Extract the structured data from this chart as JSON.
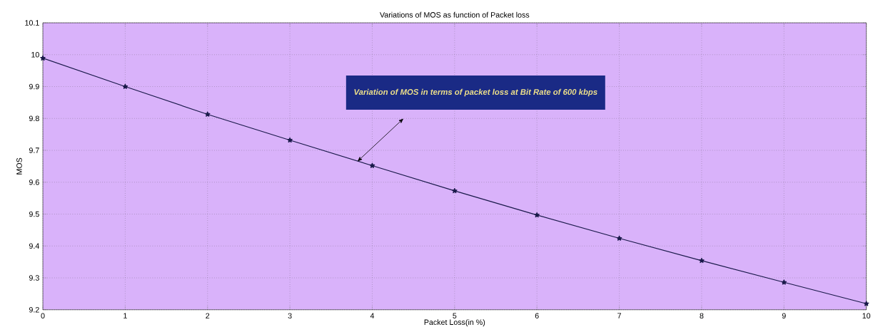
{
  "chart_data": {
    "type": "line",
    "title": "Variations of MOS as function of Packet loss",
    "xlabel": "Packet Loss(in %)",
    "ylabel": "MOS",
    "x": [
      0,
      1,
      2,
      3,
      4,
      5,
      6,
      7,
      8,
      9,
      10
    ],
    "series": [
      {
        "color": "#1a1a4a",
        "values": [
          9.989,
          9.9,
          9.813,
          9.732,
          9.652,
          9.573,
          9.497,
          9.424,
          9.354,
          9.286,
          9.219
        ]
      }
    ],
    "xlim": [
      0,
      10
    ],
    "xticks": [
      0,
      1,
      2,
      3,
      4,
      5,
      6,
      7,
      8,
      9,
      10
    ],
    "ylim": [
      9.2,
      10.1
    ],
    "yticks": [
      9.2,
      9.3,
      9.4,
      9.5,
      9.6,
      9.7,
      9.8,
      9.9,
      10,
      10.1
    ],
    "grid": true,
    "marker": "star",
    "line_style": "solid",
    "annotations": [
      "Variation of MOS in terms of packet loss at Bit Rate of 600 kbps"
    ]
  }
}
